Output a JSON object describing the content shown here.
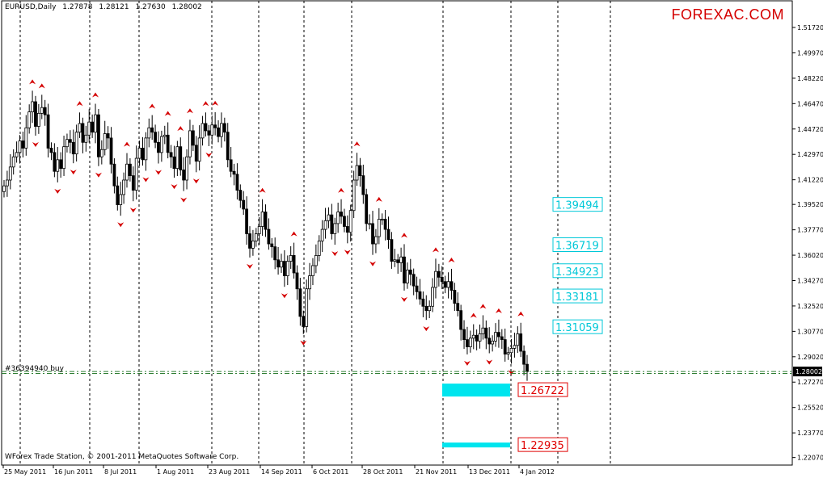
{
  "header": {
    "symbol": "EURUSD,Daily",
    "open": "1.27878",
    "high": "1.28121",
    "low": "1.27630",
    "close": "1.28002"
  },
  "brand": "FOREXAC.COM",
  "order_label": "#36394940 buy",
  "copyright": "WForex Trade Station, © 2001-2011 MetaQuotes Software Corp.",
  "colors": {
    "candle": "#000000",
    "up_arrow": "#d40000",
    "down_arrow": "#d40000",
    "cyan": "#00e5ee",
    "cyan_text": "#00c8d8",
    "red_label": "#e00000",
    "order_line": "#2e7d32"
  },
  "chart_data": {
    "type": "candlestick",
    "ylim": [
      1.2155,
      1.525
    ],
    "x_range": [
      "2011-05-25",
      "2012-01-26"
    ],
    "y_ticks": [
      "1.51720",
      "1.49970",
      "1.48220",
      "1.46470",
      "1.44720",
      "1.42970",
      "1.41220",
      "1.39520",
      "1.37770",
      "1.36020",
      "1.34270",
      "1.32520",
      "1.30770",
      "1.29020",
      "1.27270",
      "1.25520",
      "1.23770",
      "1.22070"
    ],
    "x_ticks": [
      "25 May 2011",
      "16 Jun 2011",
      "8 Jul 2011",
      "1 Aug 2011",
      "23 Aug 2011",
      "14 Sep 2011",
      "6 Oct 2011",
      "28 Oct 2011",
      "21 Nov 2011",
      "13 Dec 2011",
      "4 Jan 2012"
    ],
    "current_price": "1.28002",
    "order_price": 1.2787,
    "fib_levels_above": [
      "1.39494",
      "1.36719",
      "1.34923",
      "1.33181",
      "1.31059"
    ],
    "targets_below": [
      "1.26722",
      "1.22935"
    ],
    "ohlc_closes": [
      1.408,
      1.412,
      1.421,
      1.428,
      1.431,
      1.439,
      1.434,
      1.448,
      1.459,
      1.466,
      1.449,
      1.458,
      1.462,
      1.457,
      1.434,
      1.431,
      1.418,
      1.426,
      1.42,
      1.435,
      1.44,
      1.438,
      1.43,
      1.445,
      1.451,
      1.438,
      1.443,
      1.452,
      1.445,
      1.457,
      1.428,
      1.433,
      1.444,
      1.441,
      1.423,
      1.408,
      1.395,
      1.402,
      1.412,
      1.423,
      1.415,
      1.405,
      1.427,
      1.434,
      1.426,
      1.441,
      1.448,
      1.445,
      1.438,
      1.431,
      1.442,
      1.443,
      1.431,
      1.428,
      1.42,
      1.435,
      1.419,
      1.412,
      1.428,
      1.446,
      1.436,
      1.425,
      1.441,
      1.451,
      1.446,
      1.443,
      1.45,
      1.448,
      1.442,
      1.451,
      1.445,
      1.426,
      1.418,
      1.416,
      1.405,
      1.398,
      1.392,
      1.375,
      1.365,
      1.37,
      1.375,
      1.38,
      1.39,
      1.378,
      1.368,
      1.366,
      1.357,
      1.352,
      1.356,
      1.346,
      1.356,
      1.36,
      1.348,
      1.337,
      1.318,
      1.311,
      1.337,
      1.346,
      1.353,
      1.36,
      1.37,
      1.378,
      1.384,
      1.388,
      1.375,
      1.382,
      1.39,
      1.387,
      1.38,
      1.376,
      1.391,
      1.412,
      1.422,
      1.415,
      1.402,
      1.382,
      1.382,
      1.368,
      1.373,
      1.385,
      1.385,
      1.378,
      1.371,
      1.356,
      1.357,
      1.355,
      1.359,
      1.341,
      1.35,
      1.347,
      1.339,
      1.335,
      1.33,
      1.325,
      1.322,
      1.325,
      1.338,
      1.349,
      1.345,
      1.342,
      1.338,
      1.342,
      1.336,
      1.327,
      1.322,
      1.309,
      1.302,
      1.297,
      1.303,
      1.305,
      1.301,
      1.306,
      1.31,
      1.303,
      1.299,
      1.301,
      1.307,
      1.304,
      1.302,
      1.292,
      1.293,
      1.296,
      1.298,
      1.306,
      1.294,
      1.285,
      1.28
    ],
    "series": [
      {
        "name": "up_fractal_dates",
        "values": []
      },
      {
        "name": "down_fractal_dates",
        "values": []
      }
    ]
  }
}
